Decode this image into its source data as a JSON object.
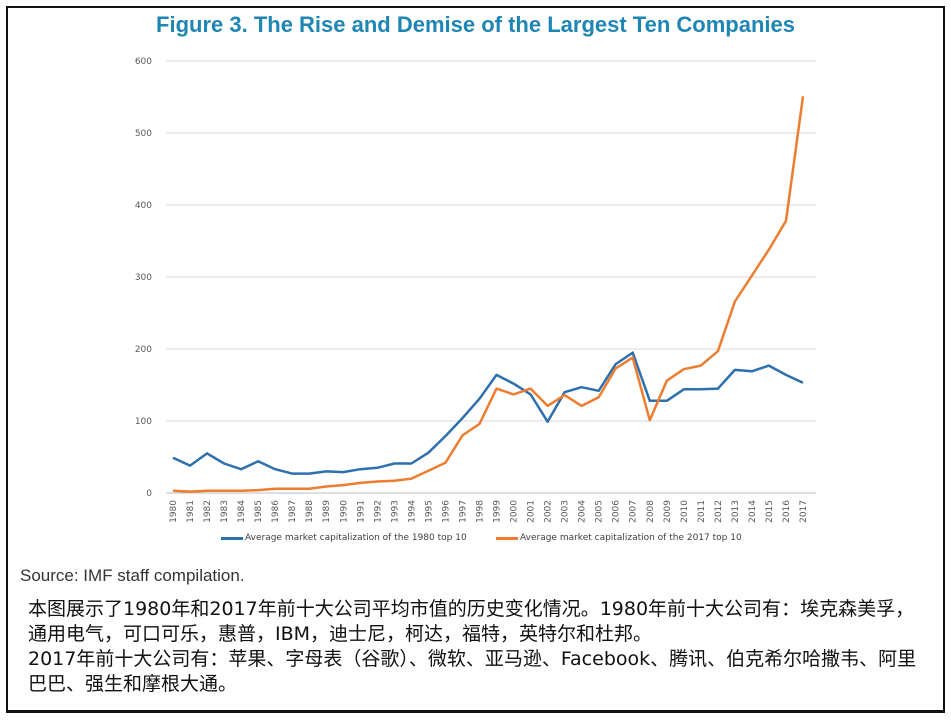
{
  "figure": {
    "title": "Figure 3. The Rise and Demise of the Largest Ten Companies",
    "source": "Source: IMF staff compilation.",
    "caption_lines": [
      "本图展示了1980年和2017年前十大公司平均市值的历史变化情况。1980年前十大公司有：埃克森美孚，通用电气，可口可乐，惠普，IBM，迪士尼，柯达，福特，英特尔和杜邦。",
      "2017年前十大公司有：苹果、字母表（谷歌）、微软、亚马逊、Facebook、腾讯、伯克希尔哈撒韦、阿里巴巴、强生和摩根大通。"
    ]
  },
  "chart_data": {
    "type": "line",
    "title": "Figure 3. The Rise and Demise of the Largest Ten Companies",
    "xlabel": "",
    "ylabel": "",
    "ylim": [
      0,
      600
    ],
    "yticks": [
      0,
      100,
      200,
      300,
      400,
      500,
      600
    ],
    "grid": true,
    "legend_position": "bottom",
    "x": [
      "1980",
      "1981",
      "1982",
      "1983",
      "1984",
      "1985",
      "1986",
      "1987",
      "1988",
      "1989",
      "1990",
      "1991",
      "1992",
      "1993",
      "1994",
      "1995",
      "1996",
      "1997",
      "1998",
      "1999",
      "2000",
      "2001",
      "2002",
      "2003",
      "2004",
      "2005",
      "2006",
      "2007",
      "2008",
      "2009",
      "2010",
      "2011",
      "2012",
      "2013",
      "2014",
      "2015",
      "2016",
      "2017"
    ],
    "series": [
      {
        "name": "Average market capitalization of the 1980 top 10",
        "color": "#2e6fad",
        "values": [
          49,
          38,
          55,
          41,
          33,
          44,
          33,
          27,
          27,
          30,
          29,
          33,
          35,
          41,
          41,
          56,
          79,
          104,
          131,
          164,
          152,
          137,
          99,
          140,
          147,
          142,
          179,
          195,
          128,
          128,
          144,
          144,
          145,
          171,
          169,
          177,
          164,
          153
        ]
      },
      {
        "name": "Average market capitalization of the 2017 top 10",
        "color": "#ed7d31",
        "values": [
          3,
          2,
          3,
          3,
          3,
          4,
          6,
          6,
          6,
          9,
          11,
          14,
          16,
          17,
          20,
          31,
          42,
          80,
          96,
          145,
          137,
          145,
          121,
          136,
          121,
          133,
          173,
          188,
          101,
          156,
          172,
          177,
          197,
          266,
          302,
          338,
          378,
          551
        ]
      }
    ]
  }
}
